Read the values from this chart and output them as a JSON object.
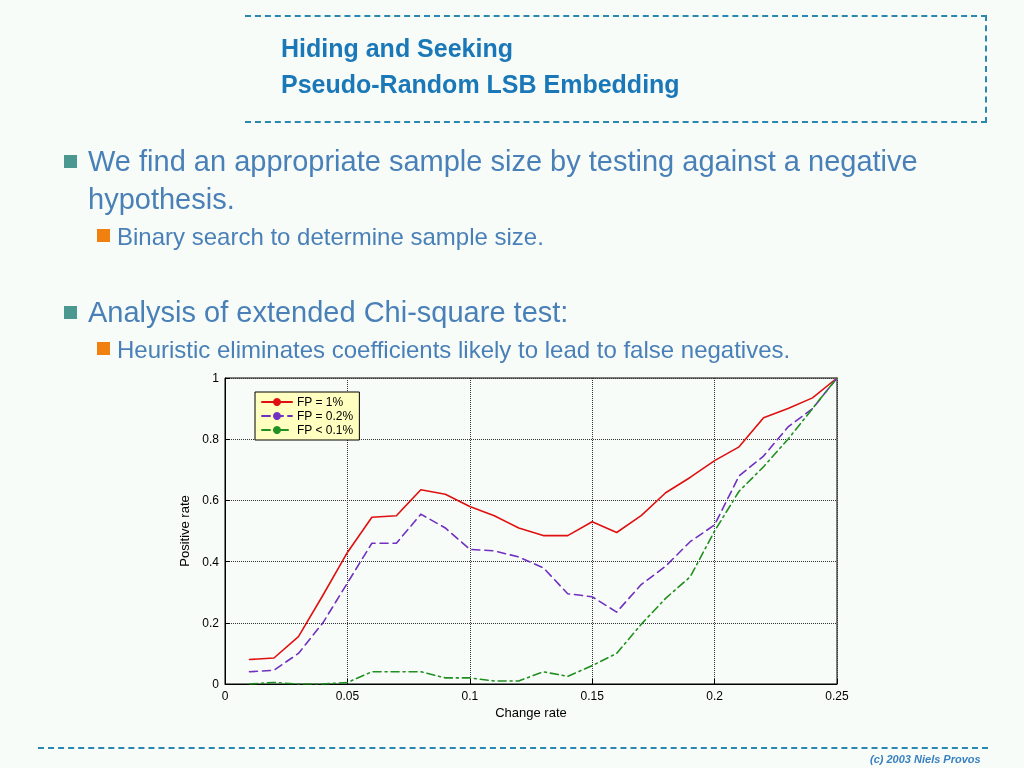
{
  "chart_data": {
    "type": "line",
    "title": "Hiding and Seeking\nPseudo-Random LSB Embedding",
    "annotations": [
      "We find an appropriate sample size by testing against a negative hypothesis.",
      "Binary search to determine sample size.",
      "Analysis of extended Chi-square test:",
      "Heuristic eliminates coefficients likely to lead to false negatives.",
      "(c) 2003 Niels Provos"
    ],
    "xlabel": "Change rate",
    "ylabel": "Positive rate",
    "x": [
      0.01,
      0.02,
      0.03,
      0.04,
      0.05,
      0.06,
      0.07,
      0.08,
      0.09,
      0.1,
      0.11,
      0.12,
      0.13,
      0.14,
      0.15,
      0.16,
      0.17,
      0.18,
      0.19,
      0.2,
      0.21,
      0.22,
      0.23,
      0.24,
      0.25
    ],
    "series": [
      {
        "name": "FP = 1%",
        "color": "#e01010",
        "line_style": "solid",
        "values": [
          0.08,
          0.085,
          0.155,
          0.29,
          0.43,
          0.545,
          0.55,
          0.635,
          0.62,
          0.58,
          0.55,
          0.51,
          0.485,
          0.485,
          0.53,
          0.495,
          0.55,
          0.625,
          0.675,
          0.73,
          0.775,
          0.87,
          0.9,
          0.935,
          1
        ]
      },
      {
        "name": "FP = 0.2%",
        "color": "#7030c0",
        "line_style": "dashed",
        "values": [
          0.04,
          0.045,
          0.1,
          0.2,
          0.33,
          0.46,
          0.46,
          0.555,
          0.51,
          0.44,
          0.435,
          0.415,
          0.38,
          0.295,
          0.285,
          0.235,
          0.325,
          0.385,
          0.465,
          0.52,
          0.68,
          0.745,
          0.84,
          0.9,
          1
        ]
      },
      {
        "name": "FP < 0.1%",
        "color": "#209020",
        "line_style": "dashdot",
        "values": [
          0,
          0.005,
          0,
          0,
          0.005,
          0.04,
          0.04,
          0.04,
          0.02,
          0.02,
          0.01,
          0.01,
          0.04,
          0.025,
          0.06,
          0.1,
          0.195,
          0.28,
          0.35,
          0.5,
          0.63,
          0.71,
          0.8,
          0.9,
          1
        ]
      }
    ],
    "xlim": [
      0,
      0.25
    ],
    "xticks": [
      0,
      0.05,
      0.1,
      0.15,
      0.2,
      0.25
    ],
    "ylim": [
      0,
      1
    ],
    "yticks": [
      0,
      0.2,
      0.4,
      0.6,
      0.8,
      1
    ],
    "grid": true,
    "legend": "top left",
    "marker": "none"
  }
}
